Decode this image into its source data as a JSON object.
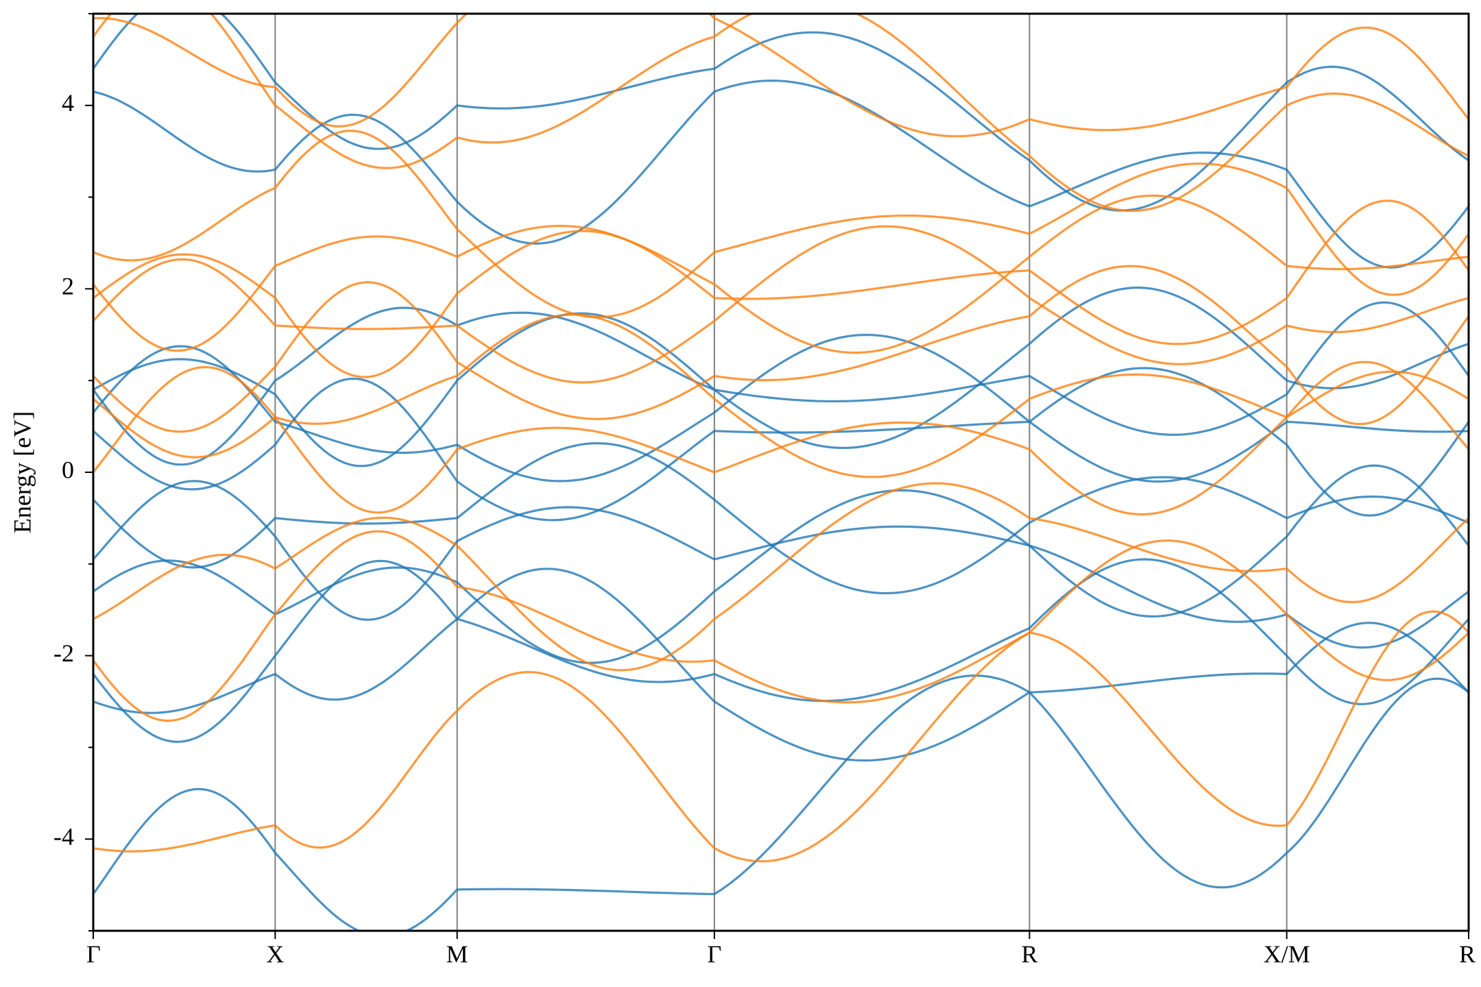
{
  "chart_data": {
    "type": "line",
    "title": "",
    "xlabel": "",
    "ylabel": "Energy [eV]",
    "ylim": [
      -5,
      5
    ],
    "y_ticks": [
      -4,
      -2,
      0,
      2,
      4
    ],
    "y_tick_labels": [
      "-4",
      "-2",
      "0",
      "2",
      "4"
    ],
    "grid": false,
    "legend": "none",
    "path_segments": [
      {
        "label": "Γ",
        "x": 0.0
      },
      {
        "label": "X",
        "x": 0.5
      },
      {
        "label": "M",
        "x": 1.0
      },
      {
        "label": "Γ",
        "x": 1.707
      },
      {
        "label": "R",
        "x": 2.573
      },
      {
        "label": "X/M",
        "x": 3.28
      },
      {
        "label": "R",
        "x": 3.78
      }
    ],
    "x_tick_labels": [
      "Γ",
      "X",
      "M",
      "Γ",
      "R",
      "X/M",
      "R"
    ],
    "colors": {
      "spin_up": "#1f77b4",
      "spin_down": "#ff7f0e",
      "vline": "#808080"
    },
    "series": [
      {
        "color": "#1f77b4",
        "values": [
          -4.6,
          -4.15,
          -4.55,
          -4.6,
          -2.4,
          -4.15,
          -2.4
        ]
      },
      {
        "color": "#1f77b4",
        "values": [
          -2.5,
          -2.2,
          -1.6,
          -2.5,
          -2.4,
          -2.2,
          -2.4
        ]
      },
      {
        "color": "#1f77b4",
        "values": [
          -2.2,
          -2.0,
          -1.6,
          -2.2,
          -1.7,
          -2.0,
          -1.6
        ]
      },
      {
        "color": "#1f77b4",
        "values": [
          -1.3,
          -1.55,
          -1.2,
          -1.3,
          -0.8,
          -1.55,
          -1.3
        ]
      },
      {
        "color": "#1f77b4",
        "values": [
          -0.95,
          -0.7,
          -0.75,
          -0.95,
          -0.8,
          -0.7,
          -0.8
        ]
      },
      {
        "color": "#1f77b4",
        "values": [
          -0.3,
          -0.5,
          -0.5,
          -0.3,
          -0.55,
          -0.5,
          -0.55
        ]
      },
      {
        "color": "#1f77b4",
        "values": [
          0.45,
          0.3,
          -0.1,
          0.45,
          0.55,
          0.3,
          0.55
        ]
      },
      {
        "color": "#1f77b4",
        "values": [
          0.65,
          0.55,
          0.3,
          0.65,
          0.55,
          0.55,
          0.45
        ]
      },
      {
        "color": "#1f77b4",
        "values": [
          0.9,
          0.85,
          1.0,
          0.9,
          1.05,
          0.85,
          1.05
        ]
      },
      {
        "color": "#1f77b4",
        "values": [
          0.9,
          1.0,
          1.6,
          0.9,
          1.4,
          1.0,
          1.4
        ]
      },
      {
        "color": "#1f77b4",
        "values": [
          4.15,
          3.3,
          2.95,
          4.15,
          2.9,
          3.3,
          2.9
        ]
      },
      {
        "color": "#1f77b4",
        "values": [
          4.4,
          4.25,
          4.0,
          4.4,
          3.4,
          4.25,
          3.4
        ]
      },
      {
        "color": "#ff7f0e",
        "values": [
          -4.1,
          -3.85,
          -2.6,
          -4.1,
          -1.75,
          -3.85,
          -1.75
        ]
      },
      {
        "color": "#ff7f0e",
        "values": [
          -2.05,
          -1.55,
          -1.25,
          -2.05,
          -1.75,
          -1.55,
          -1.75
        ]
      },
      {
        "color": "#ff7f0e",
        "values": [
          -1.6,
          -1.05,
          -0.8,
          -1.6,
          -0.5,
          -1.05,
          -0.5
        ]
      },
      {
        "color": "#ff7f0e",
        "values": [
          0.0,
          0.6,
          0.25,
          0.0,
          0.25,
          0.6,
          0.25
        ]
      },
      {
        "color": "#ff7f0e",
        "values": [
          0.8,
          0.6,
          1.05,
          0.8,
          0.8,
          0.6,
          0.8
        ]
      },
      {
        "color": "#ff7f0e",
        "values": [
          1.05,
          1.15,
          1.2,
          1.05,
          1.7,
          1.15,
          1.7
        ]
      },
      {
        "color": "#ff7f0e",
        "values": [
          1.65,
          1.6,
          1.6,
          1.65,
          1.9,
          1.6,
          1.9
        ]
      },
      {
        "color": "#ff7f0e",
        "values": [
          1.9,
          1.9,
          1.95,
          1.9,
          2.2,
          1.9,
          2.2
        ]
      },
      {
        "color": "#ff7f0e",
        "values": [
          2.05,
          2.25,
          2.35,
          2.05,
          2.35,
          2.25,
          2.35
        ]
      },
      {
        "color": "#ff7f0e",
        "values": [
          2.4,
          3.1,
          2.65,
          2.4,
          2.6,
          3.1,
          2.6
        ]
      },
      {
        "color": "#ff7f0e",
        "values": [
          4.75,
          4.0,
          3.65,
          4.75,
          3.45,
          4.0,
          3.45
        ]
      },
      {
        "color": "#ff7f0e",
        "values": [
          4.95,
          4.2,
          4.9,
          4.95,
          3.85,
          4.2,
          3.85
        ]
      }
    ]
  }
}
